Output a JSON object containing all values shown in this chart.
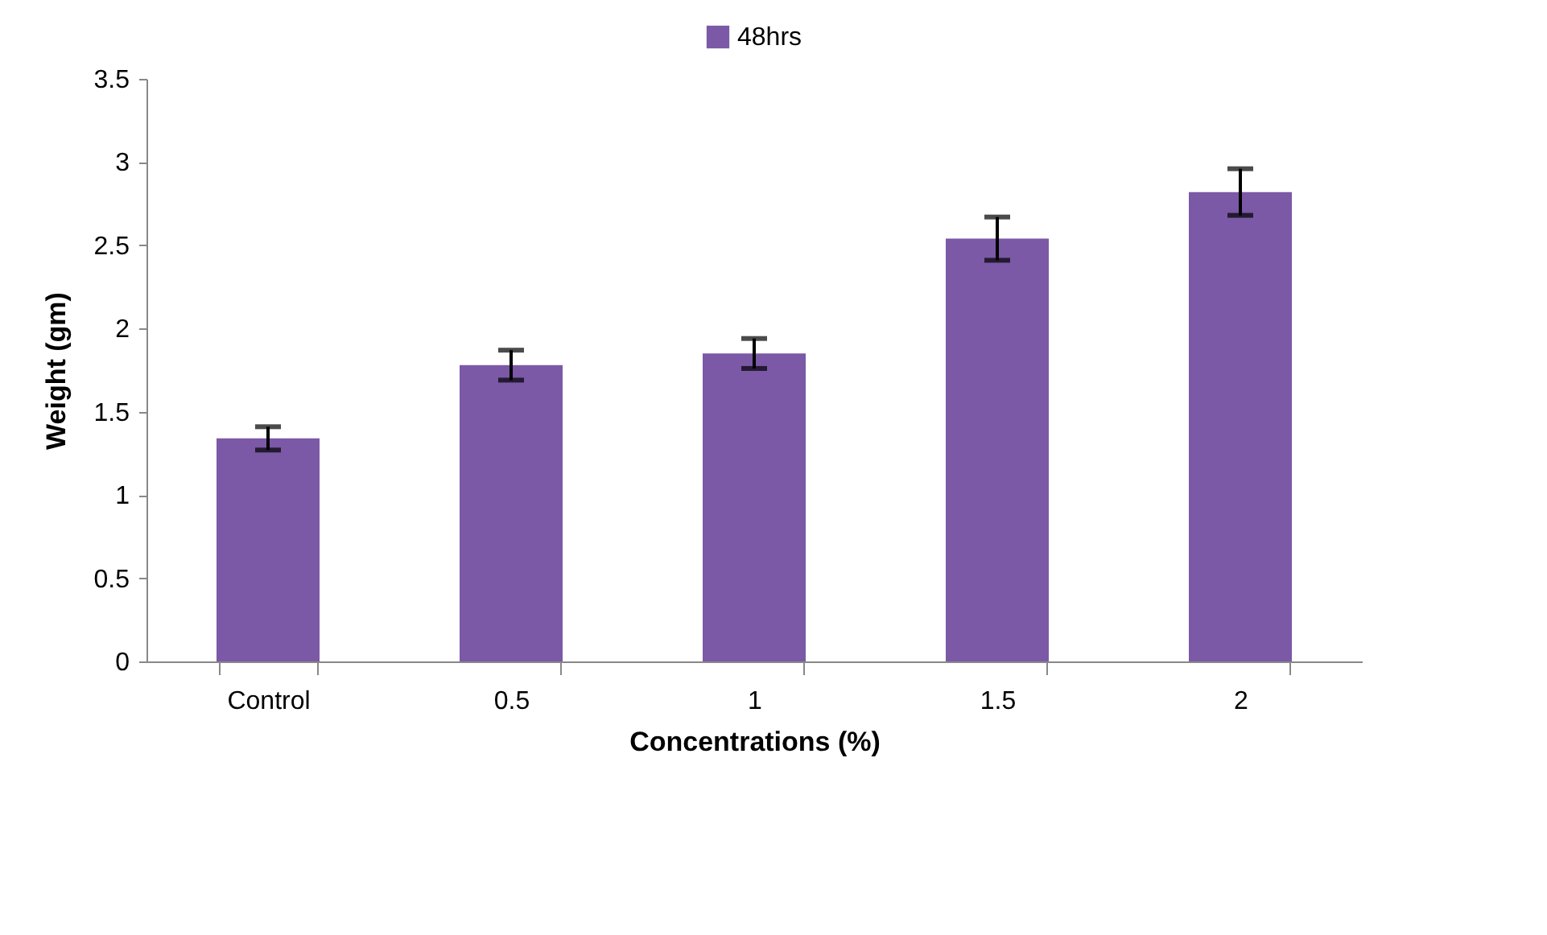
{
  "chart_data": {
    "type": "bar",
    "xlabel": "Concentrations (%)",
    "ylabel": "Weight (gm)",
    "categories": [
      "Control",
      "0.5",
      "1",
      "1.5",
      "2"
    ],
    "series": [
      {
        "name": "48hrs",
        "color": "#7b59a6",
        "values": [
          1.34,
          1.78,
          1.85,
          2.54,
          2.82
        ],
        "errors": [
          0.07,
          0.09,
          0.09,
          0.13,
          0.14
        ]
      }
    ],
    "ylim": [
      0,
      3.5
    ],
    "yticks": [
      0,
      0.5,
      1,
      1.5,
      2,
      2.5,
      3,
      3.5
    ],
    "grid": false,
    "legend": "top"
  }
}
